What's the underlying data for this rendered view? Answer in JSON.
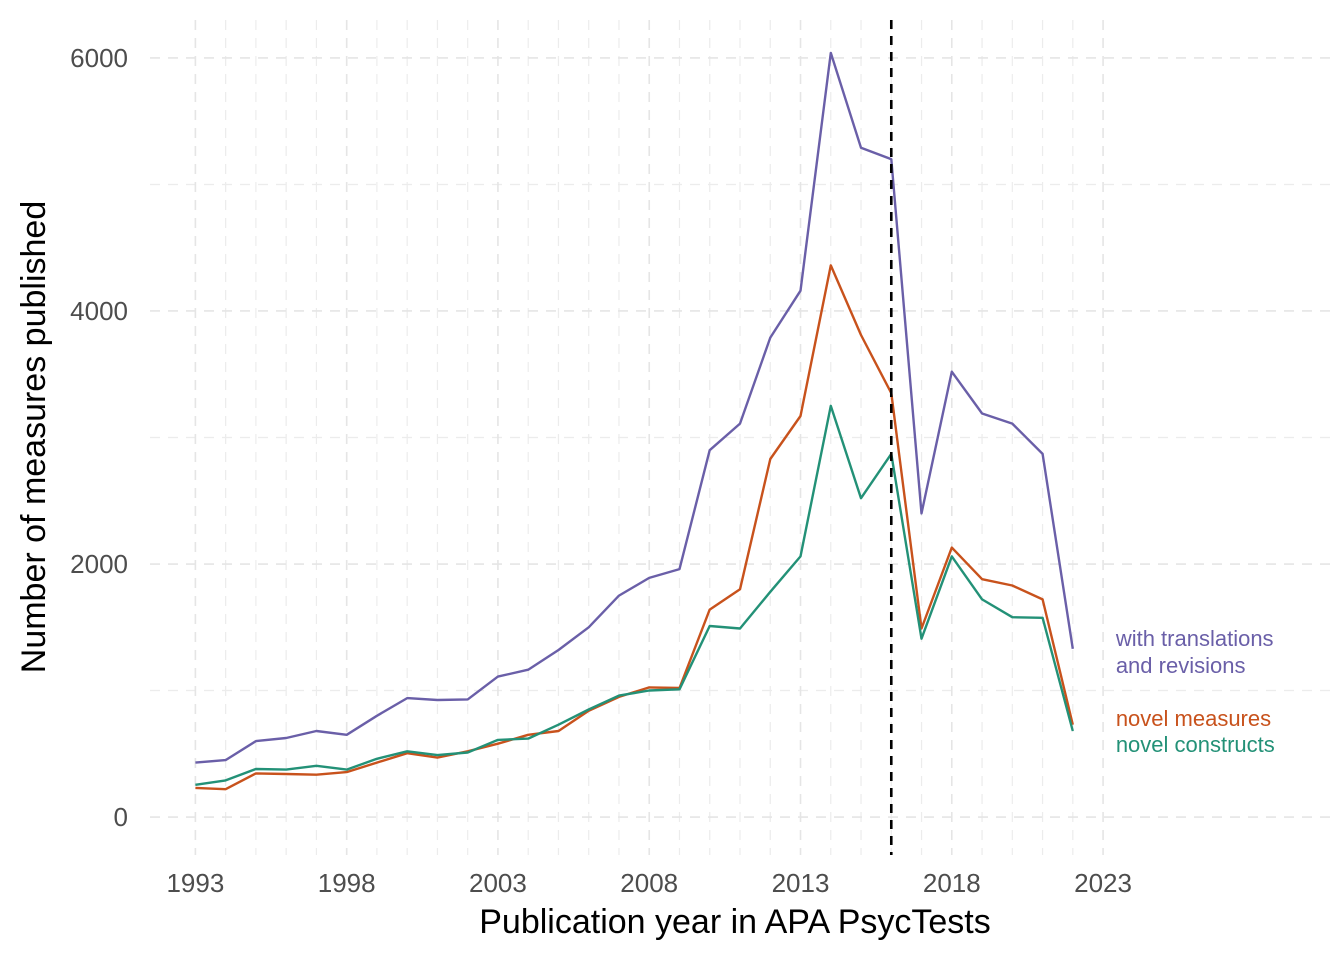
{
  "chart_data": {
    "type": "line",
    "xlabel": "Publication year in APA PsycTests",
    "ylabel": "Number of measures published",
    "xlim": [
      1991.5,
      2030.5
    ],
    "ylim": [
      -300,
      6300
    ],
    "x_ticks": [
      1993,
      1998,
      2003,
      2008,
      2013,
      2018,
      2023
    ],
    "x_minor_ticks": [
      1994,
      1995,
      1996,
      1997,
      1999,
      2000,
      2001,
      2002,
      2004,
      2005,
      2006,
      2007,
      2009,
      2010,
      2011,
      2012,
      2014,
      2015,
      2016,
      2017,
      2019,
      2020,
      2021,
      2022
    ],
    "y_ticks": [
      0,
      2000,
      4000,
      6000
    ],
    "y_minor_ticks": [
      1000,
      3000,
      5000
    ],
    "grid": true,
    "reference_line_x": 2016,
    "x": [
      1993,
      1994,
      1995,
      1996,
      1997,
      1998,
      1999,
      2000,
      2001,
      2002,
      2003,
      2004,
      2005,
      2006,
      2007,
      2008,
      2009,
      2010,
      2011,
      2012,
      2013,
      2014,
      2015,
      2016,
      2017,
      2018,
      2019,
      2020,
      2021,
      2022
    ],
    "series": [
      {
        "name": "with translations and revisions",
        "label_lines": [
          "with translations",
          "and revisions"
        ],
        "color": "#6a5fa8",
        "values": [
          430,
          450,
          600,
          625,
          680,
          650,
          800,
          940,
          925,
          930,
          1110,
          1165,
          1320,
          1500,
          1750,
          1890,
          1960,
          2900,
          3110,
          3790,
          4160,
          6040,
          5290,
          5200,
          2400,
          3520,
          3190,
          3110,
          2870,
          1330
        ]
      },
      {
        "name": "novel measures",
        "label_lines": [
          "novel measures"
        ],
        "color": "#c8521c",
        "values": [
          230,
          220,
          345,
          340,
          335,
          355,
          430,
          505,
          470,
          520,
          580,
          650,
          680,
          840,
          950,
          1025,
          1020,
          1640,
          1800,
          2830,
          3170,
          4360,
          3810,
          3350,
          1490,
          2130,
          1880,
          1830,
          1720,
          730
        ]
      },
      {
        "name": "novel constructs",
        "label_lines": [
          "novel constructs"
        ],
        "color": "#239177",
        "values": [
          255,
          290,
          380,
          375,
          405,
          375,
          460,
          520,
          490,
          510,
          610,
          620,
          730,
          850,
          960,
          1000,
          1010,
          1510,
          1490,
          1780,
          2060,
          3250,
          2520,
          2870,
          1410,
          2060,
          1720,
          1580,
          1575,
          680
        ]
      }
    ]
  }
}
